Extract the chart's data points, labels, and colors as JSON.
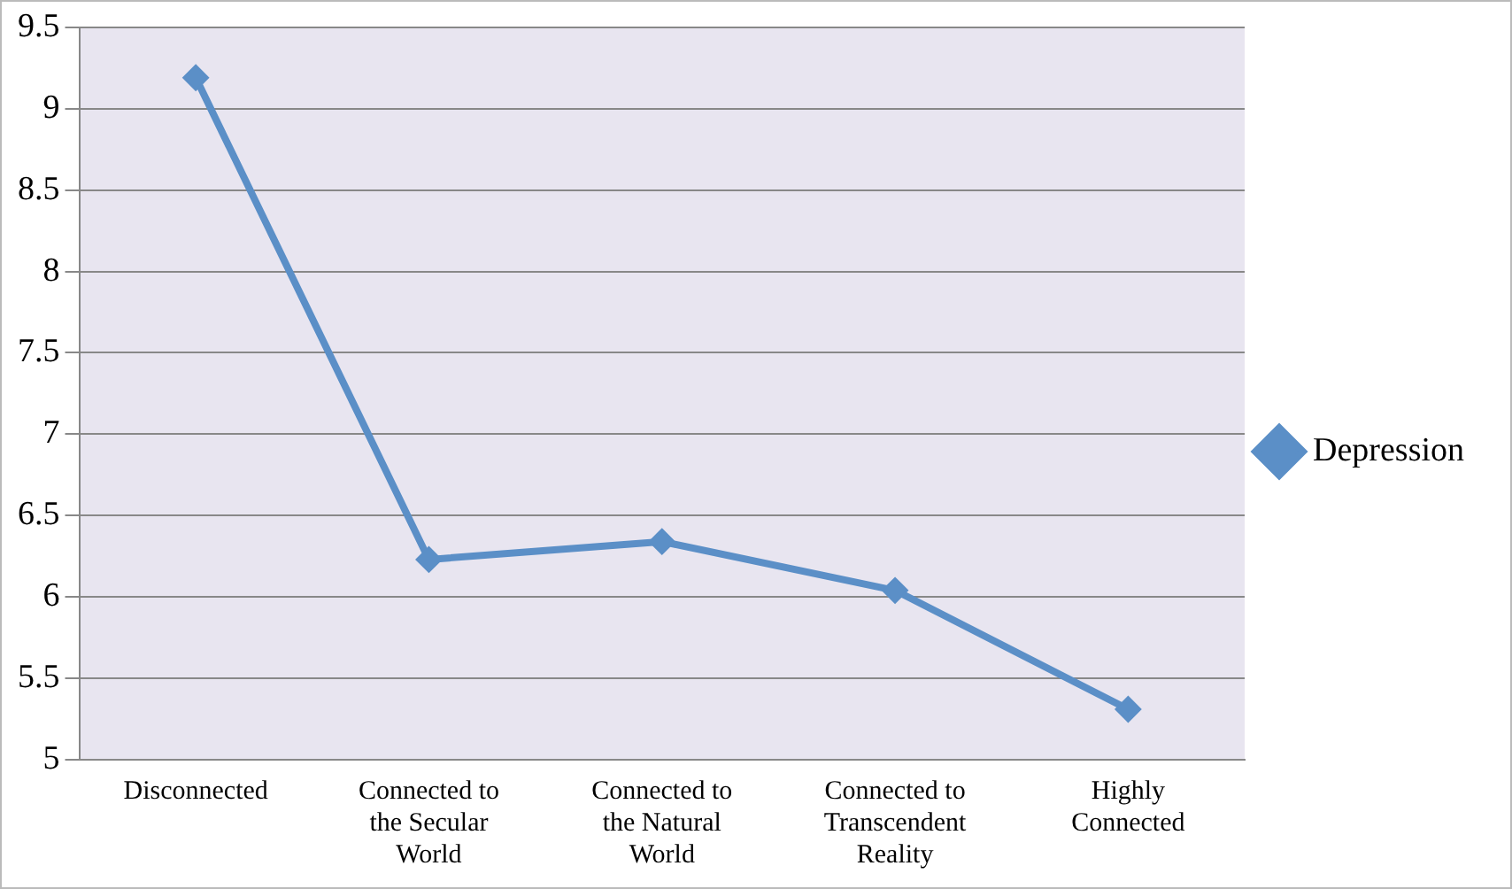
{
  "chart_data": {
    "type": "line",
    "categories": [
      "Disconnected",
      "Connected to the Secular World",
      "Connected to the Natural World",
      "Connected to Transcendent Reality",
      "Highly Connected"
    ],
    "series": [
      {
        "name": "Depression",
        "color": "#5b8fc7",
        "values": [
          9.19,
          6.23,
          6.34,
          6.04,
          5.31
        ]
      }
    ],
    "ylim": [
      5,
      9.5
    ],
    "yticks": [
      5,
      5.5,
      6,
      6.5,
      7,
      7.5,
      8,
      8.5,
      9,
      9.5
    ],
    "grid": "y",
    "legend": "right",
    "marker": "diamond",
    "line_style": "solid"
  }
}
